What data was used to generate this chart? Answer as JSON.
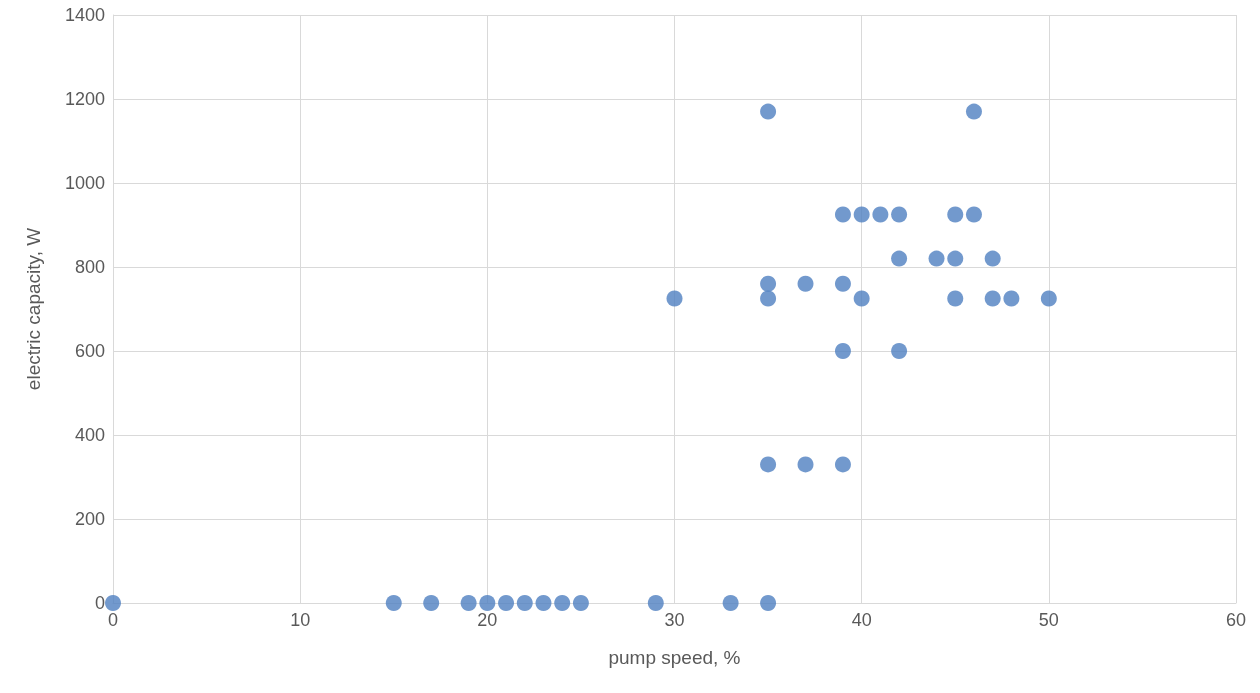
{
  "chart_data": {
    "type": "scatter",
    "xlabel": "pump speed, %",
    "ylabel": "electric capacity, W",
    "x": [
      0,
      15,
      17,
      19,
      20,
      21,
      22,
      23,
      24,
      25,
      29,
      33,
      35,
      35,
      46,
      39,
      40,
      41,
      42,
      45,
      46,
      42,
      44,
      45,
      47,
      35,
      37,
      39,
      30,
      35,
      40,
      45,
      47,
      48,
      50,
      39,
      42,
      35,
      37,
      39
    ],
    "series": [
      {
        "color": "#4f7fc0",
        "values": [
          0,
          0,
          0,
          0,
          0,
          0,
          0,
          0,
          0,
          0,
          0,
          0,
          0,
          1170,
          1170,
          925,
          925,
          925,
          925,
          925,
          925,
          820,
          820,
          820,
          820,
          760,
          760,
          760,
          725,
          725,
          725,
          725,
          725,
          725,
          725,
          600,
          600,
          330,
          330,
          330
        ]
      }
    ],
    "xlim": [
      0,
      60
    ],
    "xticks": [
      0,
      10,
      20,
      30,
      40,
      50,
      60
    ],
    "ylim": [
      0,
      1400
    ],
    "yticks": [
      0,
      200,
      400,
      600,
      800,
      1000,
      1200,
      1400
    ],
    "grid": true,
    "marker": "circle"
  }
}
